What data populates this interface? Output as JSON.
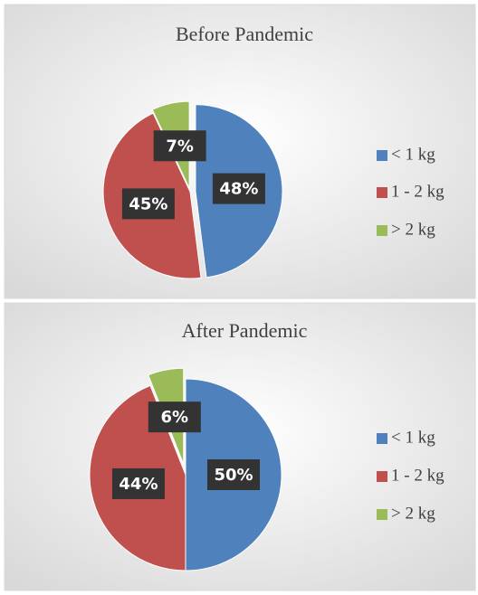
{
  "chart_data": [
    {
      "type": "pie",
      "title": "Before Pandemic",
      "categories": [
        "< 1 kg",
        "1 - 2 kg",
        "> 2 kg"
      ],
      "values": [
        48,
        45,
        7
      ],
      "value_labels": [
        "48%",
        "45%",
        "7%"
      ],
      "colors": [
        "#4f81bd",
        "#c0504d",
        "#9bbb59"
      ],
      "legend": "right"
    },
    {
      "type": "pie",
      "title": "After Pandemic",
      "categories": [
        "< 1 kg",
        "1 - 2 kg",
        "> 2 kg"
      ],
      "values": [
        50,
        44,
        6
      ],
      "value_labels": [
        "50%",
        "44%",
        "6%"
      ],
      "colors": [
        "#4f81bd",
        "#c0504d",
        "#9bbb59"
      ],
      "legend": "right"
    }
  ]
}
